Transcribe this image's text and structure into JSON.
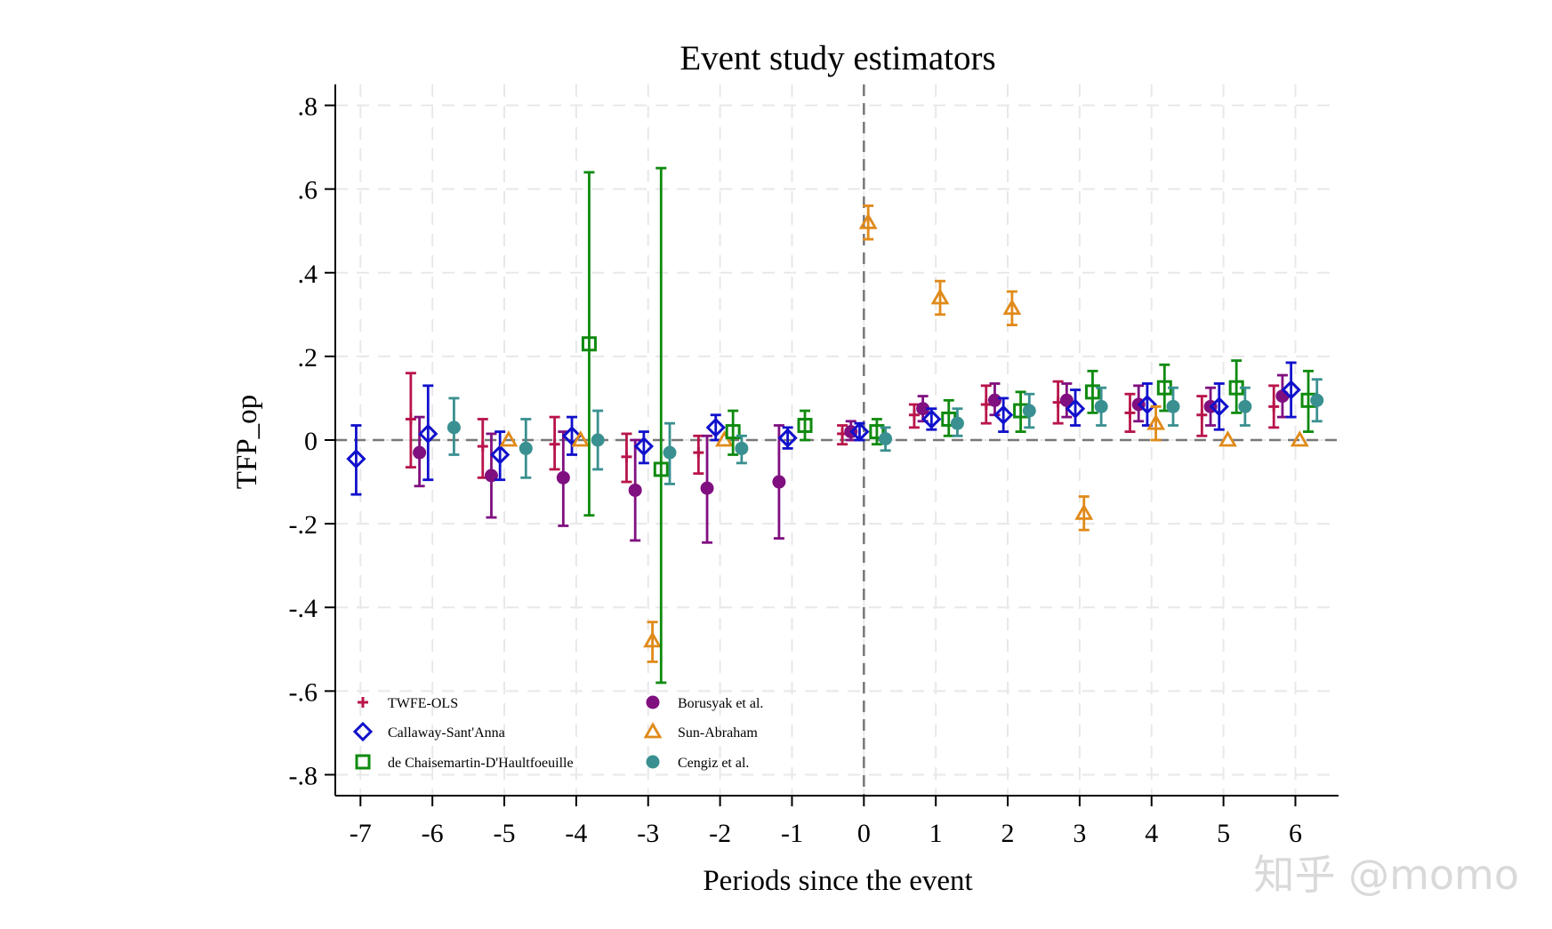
{
  "chart_data": {
    "type": "scatter",
    "title": "Event study estimators",
    "xlabel": "Periods since the event",
    "ylabel": "TFP_op",
    "xlim": [
      -7.35,
      6.6
    ],
    "ylim": [
      -0.85,
      0.85
    ],
    "x_ticks": [
      -7,
      -6,
      -5,
      -4,
      -3,
      -2,
      -1,
      0,
      1,
      2,
      3,
      4,
      5,
      6
    ],
    "x_tick_labels": [
      "-7",
      "-6",
      "-5",
      "-4",
      "-3",
      "-2",
      "-1",
      "0",
      "1",
      "2",
      "3",
      "4",
      "5",
      "6"
    ],
    "y_ticks": [
      0.8,
      0.6,
      0.4,
      0.2,
      0,
      -0.2,
      -0.4,
      -0.6,
      -0.8
    ],
    "y_tick_labels": [
      ".8",
      ".6",
      ".4",
      ".2",
      "0",
      "-.2",
      "-.4",
      "-.6",
      "-.8"
    ],
    "grid": true,
    "reference_lines": {
      "x": 0,
      "y": 0
    },
    "legend_position": "bottom-left",
    "series": [
      {
        "name": "TWFE-OLS",
        "marker": "plus",
        "color": "#B8154A",
        "offset": -0.3,
        "points": [
          {
            "x": -6,
            "y": 0.05,
            "lo": -0.065,
            "hi": 0.16
          },
          {
            "x": -5,
            "y": -0.015,
            "lo": -0.09,
            "hi": 0.05
          },
          {
            "x": -4,
            "y": -0.01,
            "lo": -0.07,
            "hi": 0.055
          },
          {
            "x": -3,
            "y": -0.04,
            "lo": -0.1,
            "hi": 0.015
          },
          {
            "x": -2,
            "y": -0.03,
            "lo": -0.08,
            "hi": 0.01
          },
          {
            "x": 0,
            "y": 0.015,
            "lo": -0.01,
            "hi": 0.035
          },
          {
            "x": 1,
            "y": 0.06,
            "lo": 0.03,
            "hi": 0.085
          },
          {
            "x": 2,
            "y": 0.085,
            "lo": 0.04,
            "hi": 0.13
          },
          {
            "x": 3,
            "y": 0.09,
            "lo": 0.04,
            "hi": 0.14
          },
          {
            "x": 4,
            "y": 0.065,
            "lo": 0.02,
            "hi": 0.11
          },
          {
            "x": 5,
            "y": 0.06,
            "lo": 0.01,
            "hi": 0.105
          },
          {
            "x": 6,
            "y": 0.08,
            "lo": 0.03,
            "hi": 0.13
          }
        ]
      },
      {
        "name": "Borusyak et al.",
        "marker": "circle",
        "color": "#800F80",
        "offset": -0.18,
        "points": [
          {
            "x": -6,
            "y": -0.03,
            "lo": -0.11,
            "hi": 0.055
          },
          {
            "x": -5,
            "y": -0.085,
            "lo": -0.185,
            "hi": 0.015
          },
          {
            "x": -4,
            "y": -0.09,
            "lo": -0.205,
            "hi": 0.02
          },
          {
            "x": -3,
            "y": -0.12,
            "lo": -0.24,
            "hi": 0.0
          },
          {
            "x": -2,
            "y": -0.115,
            "lo": -0.245,
            "hi": 0.01
          },
          {
            "x": -1,
            "y": -0.1,
            "lo": -0.235,
            "hi": 0.035
          },
          {
            "x": 0,
            "y": 0.02,
            "lo": 0.0,
            "hi": 0.045
          },
          {
            "x": 1,
            "y": 0.075,
            "lo": 0.045,
            "hi": 0.105
          },
          {
            "x": 2,
            "y": 0.095,
            "lo": 0.06,
            "hi": 0.135
          },
          {
            "x": 3,
            "y": 0.095,
            "lo": 0.055,
            "hi": 0.135
          },
          {
            "x": 4,
            "y": 0.085,
            "lo": 0.045,
            "hi": 0.13
          },
          {
            "x": 5,
            "y": 0.08,
            "lo": 0.035,
            "hi": 0.125
          },
          {
            "x": 6,
            "y": 0.105,
            "lo": 0.055,
            "hi": 0.155
          }
        ]
      },
      {
        "name": "Callaway-Sant'Anna",
        "marker": "diamond",
        "color": "#1010CC",
        "offset": -0.06,
        "points": [
          {
            "x": -7,
            "y": -0.045,
            "lo": -0.13,
            "hi": 0.035
          },
          {
            "x": -6,
            "y": 0.015,
            "lo": -0.095,
            "hi": 0.13
          },
          {
            "x": -5,
            "y": -0.035,
            "lo": -0.095,
            "hi": 0.02
          },
          {
            "x": -4,
            "y": 0.01,
            "lo": -0.035,
            "hi": 0.055
          },
          {
            "x": -3,
            "y": -0.015,
            "lo": -0.055,
            "hi": 0.02
          },
          {
            "x": -2,
            "y": 0.03,
            "lo": 0.0,
            "hi": 0.06
          },
          {
            "x": -1,
            "y": 0.005,
            "lo": -0.02,
            "hi": 0.03
          },
          {
            "x": 0,
            "y": 0.02,
            "lo": 0.0,
            "hi": 0.04
          },
          {
            "x": 1,
            "y": 0.05,
            "lo": 0.025,
            "hi": 0.075
          },
          {
            "x": 2,
            "y": 0.06,
            "lo": 0.02,
            "hi": 0.1
          },
          {
            "x": 3,
            "y": 0.075,
            "lo": 0.035,
            "hi": 0.12
          },
          {
            "x": 4,
            "y": 0.085,
            "lo": 0.035,
            "hi": 0.135
          },
          {
            "x": 5,
            "y": 0.08,
            "lo": 0.025,
            "hi": 0.135
          },
          {
            "x": 6,
            "y": 0.12,
            "lo": 0.055,
            "hi": 0.185
          }
        ]
      },
      {
        "name": "Sun-Abraham",
        "marker": "triangle",
        "color": "#E08A1A",
        "offset": 0.06,
        "points": [
          {
            "x": -5,
            "y": 0.0
          },
          {
            "x": -4,
            "y": 0.0
          },
          {
            "x": -3,
            "y": -0.48,
            "lo": -0.53,
            "hi": -0.435
          },
          {
            "x": -2,
            "y": 0.0
          },
          {
            "x": 0,
            "y": 0.52,
            "lo": 0.48,
            "hi": 0.56
          },
          {
            "x": 1,
            "y": 0.34,
            "lo": 0.3,
            "hi": 0.38
          },
          {
            "x": 2,
            "y": 0.315,
            "lo": 0.275,
            "hi": 0.355
          },
          {
            "x": 3,
            "y": -0.175,
            "lo": -0.215,
            "hi": -0.135
          },
          {
            "x": 4,
            "y": 0.04,
            "lo": 0.0,
            "hi": 0.08
          },
          {
            "x": 5,
            "y": 0.0
          },
          {
            "x": 6,
            "y": 0.0
          }
        ]
      },
      {
        "name": "de Chaisemartin-D'Haultfoeuille",
        "marker": "square",
        "color": "#0F8A0F",
        "offset": 0.18,
        "points": [
          {
            "x": -4,
            "y": 0.23,
            "lo": -0.18,
            "hi": 0.64
          },
          {
            "x": -3,
            "y": -0.07,
            "lo": -0.58,
            "hi": 0.65
          },
          {
            "x": -2,
            "y": 0.02,
            "lo": -0.035,
            "hi": 0.07
          },
          {
            "x": -1,
            "y": 0.035,
            "lo": 0.0,
            "hi": 0.07
          },
          {
            "x": 0,
            "y": 0.02,
            "lo": -0.01,
            "hi": 0.05
          },
          {
            "x": 1,
            "y": 0.05,
            "lo": 0.01,
            "hi": 0.095
          },
          {
            "x": 2,
            "y": 0.07,
            "lo": 0.02,
            "hi": 0.115
          },
          {
            "x": 3,
            "y": 0.115,
            "lo": 0.065,
            "hi": 0.165
          },
          {
            "x": 4,
            "y": 0.125,
            "lo": 0.07,
            "hi": 0.18
          },
          {
            "x": 5,
            "y": 0.125,
            "lo": 0.065,
            "hi": 0.19
          },
          {
            "x": 6,
            "y": 0.095,
            "lo": 0.02,
            "hi": 0.165
          }
        ]
      },
      {
        "name": "Cengiz et al.",
        "marker": "circle",
        "color": "#3A9090",
        "offset": 0.3,
        "points": [
          {
            "x": -6,
            "y": 0.03,
            "lo": -0.035,
            "hi": 0.1
          },
          {
            "x": -5,
            "y": -0.02,
            "lo": -0.09,
            "hi": 0.05
          },
          {
            "x": -4,
            "y": 0.0,
            "lo": -0.07,
            "hi": 0.07
          },
          {
            "x": -3,
            "y": -0.03,
            "lo": -0.105,
            "hi": 0.04
          },
          {
            "x": -2,
            "y": -0.02,
            "lo": -0.055,
            "hi": 0.01
          },
          {
            "x": 0,
            "y": 0.003,
            "lo": -0.025,
            "hi": 0.03
          },
          {
            "x": 1,
            "y": 0.04,
            "lo": 0.01,
            "hi": 0.075
          },
          {
            "x": 2,
            "y": 0.07,
            "lo": 0.03,
            "hi": 0.11
          },
          {
            "x": 3,
            "y": 0.08,
            "lo": 0.035,
            "hi": 0.125
          },
          {
            "x": 4,
            "y": 0.08,
            "lo": 0.035,
            "hi": 0.125
          },
          {
            "x": 5,
            "y": 0.08,
            "lo": 0.035,
            "hi": 0.125
          },
          {
            "x": 6,
            "y": 0.095,
            "lo": 0.045,
            "hi": 0.145
          }
        ]
      }
    ],
    "legend": [
      {
        "label": "TWFE-OLS",
        "marker": "plus",
        "color": "#B8154A"
      },
      {
        "label": "Borusyak et al.",
        "marker": "circle",
        "color": "#800F80"
      },
      {
        "label": "Callaway-Sant'Anna",
        "marker": "diamond",
        "color": "#1010CC"
      },
      {
        "label": "Sun-Abraham",
        "marker": "triangle",
        "color": "#E08A1A"
      },
      {
        "label": "de Chaisemartin-D'Haultfoeuille",
        "marker": "square",
        "color": "#0F8A0F"
      },
      {
        "label": "Cengiz et al.",
        "marker": "circle",
        "color": "#3A9090"
      }
    ]
  },
  "watermark": "知乎 @momo"
}
